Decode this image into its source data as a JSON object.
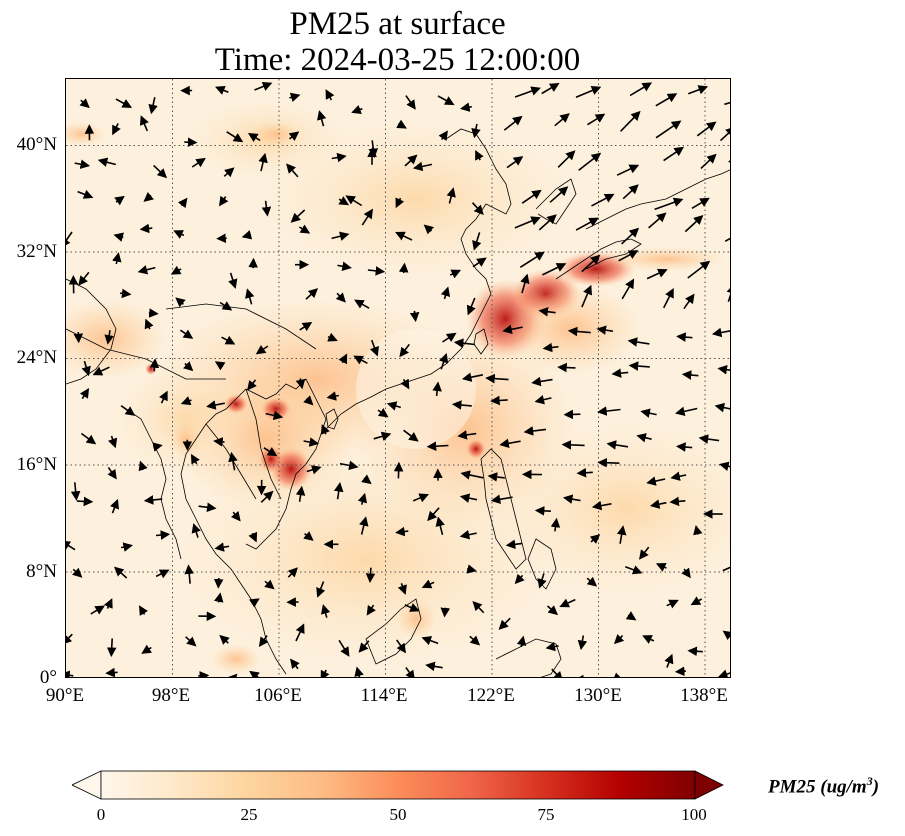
{
  "title_line1": "PM25 at surface",
  "title_line2": "Time: 2024-03-25 12:00:00",
  "lon_ticks": [
    "90°E",
    "98°E",
    "106°E",
    "114°E",
    "122°E",
    "130°E",
    "138°E"
  ],
  "lat_ticks": [
    "40°N",
    "32°N",
    "24°N",
    "16°N",
    "8°N",
    "0°"
  ],
  "lon_range": [
    90,
    140
  ],
  "lat_range": [
    0,
    45
  ],
  "colorbar": {
    "title": "PM25 (ug/m",
    "title_sup": "3",
    "title_close": ")",
    "ticks": [
      "0",
      "25",
      "50",
      "75",
      "100"
    ],
    "min": 0,
    "max": 100,
    "colormap": "OrRd",
    "extend": "both",
    "colors": [
      "#fff7ec",
      "#fee8c8",
      "#fdd49e",
      "#fdbb84",
      "#fc8d59",
      "#ef6548",
      "#d7301f",
      "#b30000",
      "#7f0000"
    ]
  },
  "gridlines": "dotted",
  "wind_vectors": "black arrows"
}
